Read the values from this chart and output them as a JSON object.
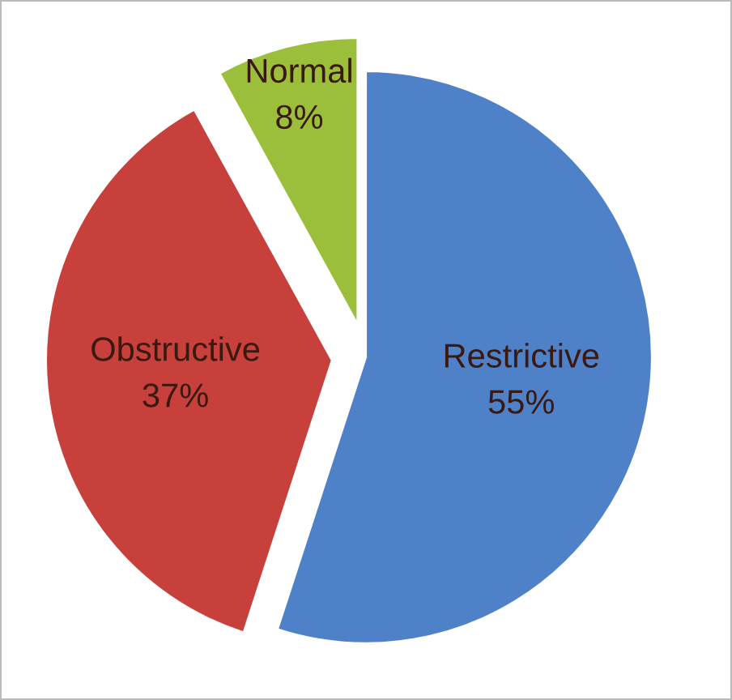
{
  "chart_data": {
    "type": "pie",
    "categories": [
      "Restrictive",
      "Obstructive",
      "Normal"
    ],
    "values": [
      55,
      37,
      8
    ],
    "colors": [
      "#4f81c9",
      "#c7403b",
      "#9bbf3b"
    ],
    "value_labels": [
      "55%",
      "37%",
      "8%"
    ]
  }
}
